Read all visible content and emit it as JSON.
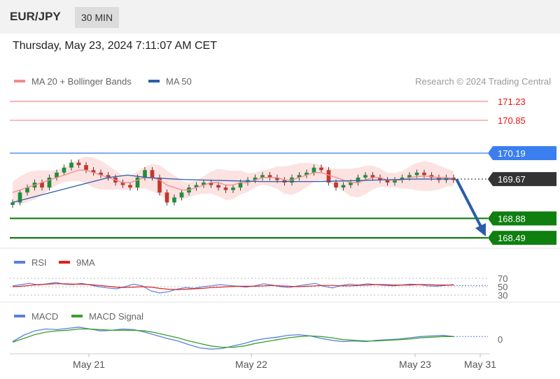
{
  "header": {
    "symbol": "EUR/JPY",
    "timeframe": "30 MIN"
  },
  "timestamp": "Thursday, May 23, 2024 7:11:07 AM CET",
  "legend": {
    "ma20": {
      "label": "MA 20 + Bollinger Bands",
      "color": "#f28b8b"
    },
    "ma50": {
      "label": "MA 50",
      "color": "#2a5ea8"
    },
    "credit": "Research © 2024 Trading Central"
  },
  "rsi_legend": {
    "rsi": "RSI",
    "ma9": "9MA"
  },
  "macd_legend": {
    "macd": "MACD",
    "signal": "MACD Signal"
  },
  "chart_data": [
    {
      "type": "candlestick",
      "title": "EUR/JPY",
      "last_price": "169.67",
      "levels": [
        {
          "value": 171.23,
          "label": "171.23",
          "style": "resistance-line",
          "color": "#ee3333"
        },
        {
          "value": 170.85,
          "label": "170.85",
          "style": "resistance-line",
          "color": "#ee3333"
        },
        {
          "value": 170.19,
          "label": "170.19",
          "style": "pivot",
          "color": "#3a7ef0"
        },
        {
          "value": 168.88,
          "label": "168.88",
          "style": "support",
          "color": "#0f7f0f"
        },
        {
          "value": 168.49,
          "label": "168.49",
          "style": "support",
          "color": "#0f7f0f"
        }
      ],
      "arrow": {
        "from": 169.67,
        "to": 168.49,
        "direction": "down",
        "color": "#2b5da8"
      },
      "x_ticks": [
        "May 21",
        "May 22",
        "May 23",
        "May 31"
      ],
      "close_series": [
        169.2,
        169.4,
        169.5,
        169.6,
        169.5,
        169.7,
        169.8,
        169.9,
        170.0,
        169.95,
        169.85,
        169.8,
        169.75,
        169.7,
        169.6,
        169.55,
        169.5,
        169.7,
        169.85,
        169.7,
        169.4,
        169.2,
        169.3,
        169.4,
        169.5,
        169.55,
        169.6,
        169.55,
        169.5,
        169.45,
        169.5,
        169.6,
        169.65,
        169.7,
        169.75,
        169.7,
        169.65,
        169.6,
        169.7,
        169.75,
        169.8,
        169.9,
        169.85,
        169.6,
        169.5,
        169.55,
        169.6,
        169.7,
        169.75,
        169.7,
        169.65,
        169.6,
        169.65,
        169.7,
        169.75,
        169.8,
        169.75,
        169.7,
        169.65,
        169.7,
        169.65
      ],
      "ma20": [
        169.4,
        169.45,
        169.5,
        169.55,
        169.6,
        169.65,
        169.7,
        169.75,
        169.8,
        169.85,
        169.85,
        169.8,
        169.75,
        169.7,
        169.65,
        169.6,
        169.6,
        169.65,
        169.7,
        169.7,
        169.65,
        169.55,
        169.5,
        169.45,
        169.45,
        169.5,
        169.55,
        169.6,
        169.6,
        169.55,
        169.55,
        169.6,
        169.6,
        169.65,
        169.7,
        169.7,
        169.7,
        169.65,
        169.65,
        169.7,
        169.75,
        169.8,
        169.8,
        169.75,
        169.7,
        169.65,
        169.6,
        169.6,
        169.65,
        169.7,
        169.7,
        169.65,
        169.65,
        169.65,
        169.7,
        169.72,
        169.73,
        169.72,
        169.7,
        169.7,
        169.68
      ],
      "ma50": [
        169.2,
        169.3,
        169.4,
        169.5,
        169.6,
        169.7,
        169.75,
        169.7,
        169.68,
        169.66,
        169.65,
        169.64,
        169.63,
        169.62,
        169.62,
        169.62,
        169.62,
        169.63,
        169.64,
        169.65,
        169.66,
        169.67,
        169.67,
        169.67
      ]
    },
    {
      "type": "line",
      "title": "RSI",
      "y_ticks": [
        "70",
        "50",
        "30"
      ],
      "ylim": [
        30,
        70
      ],
      "series": [
        {
          "name": "RSI",
          "color": "#5b7fe0",
          "values": [
            52,
            55,
            58,
            54,
            57,
            60,
            56,
            55,
            58,
            54,
            50,
            47,
            45,
            50,
            56,
            52,
            40,
            35,
            38,
            44,
            48,
            46,
            50,
            52,
            55,
            53,
            51,
            49,
            52,
            57,
            54,
            50,
            48,
            52,
            55,
            58,
            51,
            47,
            53,
            56,
            54,
            57,
            55,
            53,
            52,
            54,
            56,
            55,
            52,
            51,
            53,
            55
          ]
        },
        {
          "name": "9MA",
          "color": "#e02020",
          "values": [
            50,
            51,
            53,
            55,
            56,
            57,
            57,
            56,
            56,
            55,
            53,
            51,
            49,
            48,
            49,
            50,
            49,
            46,
            44,
            43,
            44,
            45,
            46,
            48,
            49,
            50,
            51,
            51,
            51,
            52,
            53,
            52,
            51,
            50,
            51,
            52,
            53,
            53,
            52,
            52,
            53,
            54,
            55,
            55,
            54,
            54,
            54,
            55,
            55,
            54,
            54,
            54
          ]
        }
      ]
    },
    {
      "type": "line",
      "title": "MACD",
      "y_ticks": [
        "0"
      ],
      "series": [
        {
          "name": "MACD",
          "color": "#5b7fe0",
          "values": [
            -0.05,
            0.05,
            0.12,
            0.15,
            0.14,
            0.16,
            0.18,
            0.15,
            0.12,
            0.13,
            0.15,
            0.14,
            0.1,
            0.05,
            0.0,
            -0.04,
            -0.1,
            -0.15,
            -0.17,
            -0.16,
            -0.12,
            -0.08,
            -0.03,
            0.0,
            0.02,
            0.05,
            0.06,
            0.04,
            0.0,
            -0.03,
            -0.05,
            -0.04,
            -0.05,
            -0.03,
            -0.02,
            -0.01,
            0.01,
            0.03,
            0.04,
            0.05,
            0.03
          ]
        },
        {
          "name": "MACD Signal",
          "color": "#3aa02a",
          "values": [
            -0.06,
            0.0,
            0.06,
            0.1,
            0.12,
            0.13,
            0.15,
            0.15,
            0.14,
            0.13,
            0.13,
            0.13,
            0.12,
            0.09,
            0.05,
            0.01,
            -0.04,
            -0.08,
            -0.12,
            -0.14,
            -0.14,
            -0.12,
            -0.08,
            -0.05,
            -0.02,
            0.01,
            0.03,
            0.04,
            0.03,
            0.01,
            -0.02,
            -0.03,
            -0.04,
            -0.04,
            -0.03,
            -0.02,
            -0.01,
            0.01,
            0.02,
            0.03,
            0.03
          ]
        }
      ]
    }
  ]
}
